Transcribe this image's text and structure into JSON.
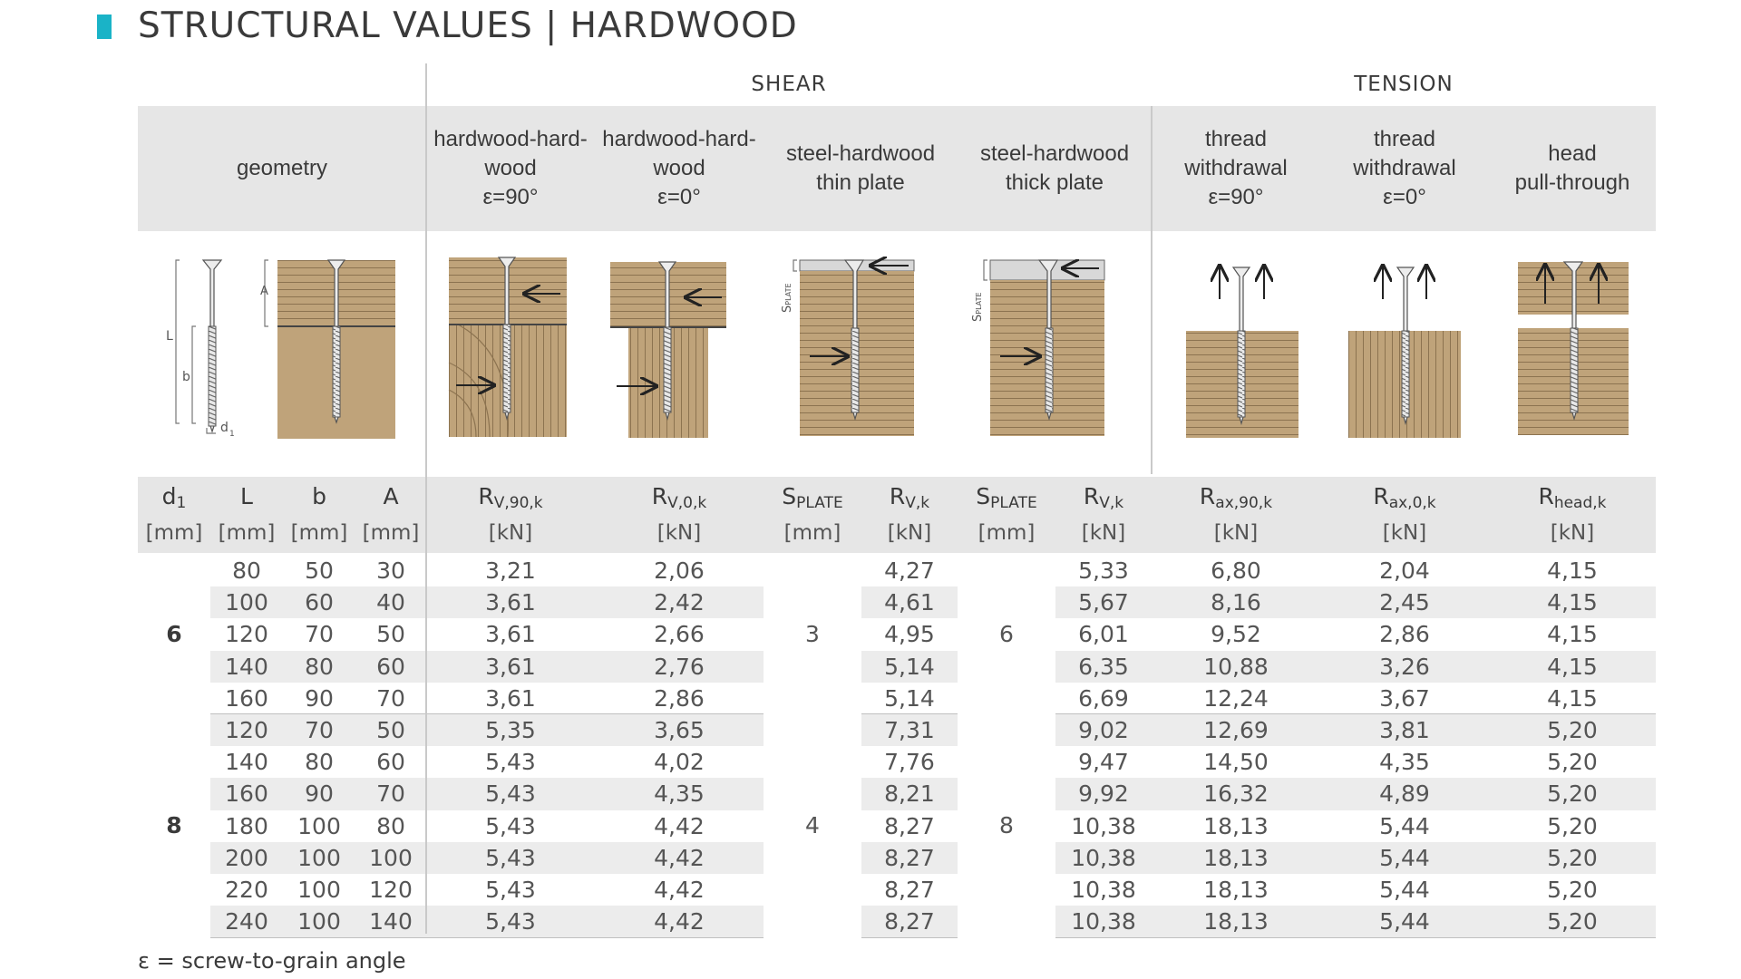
{
  "title": "STRUCTURAL VALUES | HARDWOOD",
  "colors": {
    "accent": "#1ab3c7",
    "header_bg": "#e6e6e6",
    "row_alt": "#ececec",
    "wood": "#bfa37a",
    "wood_grain": "#8c7350",
    "steel": "#d8d8d8"
  },
  "groups": {
    "shear": "SHEAR",
    "tension": "TENSION"
  },
  "headers": {
    "geometry": [
      "geometry"
    ],
    "hh90": [
      "hardwood-hard-",
      "wood",
      "ε=90°"
    ],
    "hh0": [
      "hardwood-hard-",
      "wood",
      "ε=0°"
    ],
    "steel_thin": [
      "steel-hardwood",
      "thin plate"
    ],
    "steel_thick": [
      "steel-hardwood",
      "thick plate"
    ],
    "tw90": [
      "thread",
      "withdrawal",
      "ε=90°"
    ],
    "tw0": [
      "thread",
      "withdrawal",
      "ε=0°"
    ],
    "head": [
      "head",
      "pull-through"
    ]
  },
  "diagram_labels": {
    "L": "L",
    "b": "b",
    "A": "A",
    "d1": "d",
    "d1_sub": "1",
    "splate": "S",
    "splate_sub": "PLATE"
  },
  "symbols": {
    "d1": {
      "base": "d",
      "sub": "1"
    },
    "L": {
      "base": "L",
      "sub": ""
    },
    "b": {
      "base": "b",
      "sub": ""
    },
    "A": {
      "base": "A",
      "sub": ""
    },
    "rv90": {
      "base": "R",
      "sub": "V,90,k"
    },
    "rv0": {
      "base": "R",
      "sub": "V,0,k"
    },
    "splate1": {
      "base": "S",
      "sub": "PLATE"
    },
    "rvk1": {
      "base": "R",
      "sub": "V,k"
    },
    "splate2": {
      "base": "S",
      "sub": "PLATE"
    },
    "rvk2": {
      "base": "R",
      "sub": "V,k"
    },
    "rax90": {
      "base": "R",
      "sub": "ax,90,k"
    },
    "rax0": {
      "base": "R",
      "sub": "ax,0,k"
    },
    "rhead": {
      "base": "R",
      "sub": "head,k"
    }
  },
  "units": {
    "mm": "[mm]",
    "kN": "[kN]"
  },
  "groups_rows": [
    {
      "d1": "6",
      "splate_thin": "3",
      "splate_thick": "6",
      "rows": [
        [
          "80",
          "50",
          "30",
          "3,21",
          "2,06",
          "4,27",
          "5,33",
          "6,80",
          "2,04",
          "4,15"
        ],
        [
          "100",
          "60",
          "40",
          "3,61",
          "2,42",
          "4,61",
          "5,67",
          "8,16",
          "2,45",
          "4,15"
        ],
        [
          "120",
          "70",
          "50",
          "3,61",
          "2,66",
          "4,95",
          "6,01",
          "9,52",
          "2,86",
          "4,15"
        ],
        [
          "140",
          "80",
          "60",
          "3,61",
          "2,76",
          "5,14",
          "6,35",
          "10,88",
          "3,26",
          "4,15"
        ],
        [
          "160",
          "90",
          "70",
          "3,61",
          "2,86",
          "5,14",
          "6,69",
          "12,24",
          "3,67",
          "4,15"
        ]
      ]
    },
    {
      "d1": "8",
      "splate_thin": "4",
      "splate_thick": "8",
      "rows": [
        [
          "120",
          "70",
          "50",
          "5,35",
          "3,65",
          "7,31",
          "9,02",
          "12,69",
          "3,81",
          "5,20"
        ],
        [
          "140",
          "80",
          "60",
          "5,43",
          "4,02",
          "7,76",
          "9,47",
          "14,50",
          "4,35",
          "5,20"
        ],
        [
          "160",
          "90",
          "70",
          "5,43",
          "4,35",
          "8,21",
          "9,92",
          "16,32",
          "4,89",
          "5,20"
        ],
        [
          "180",
          "100",
          "80",
          "5,43",
          "4,42",
          "8,27",
          "10,38",
          "18,13",
          "5,44",
          "5,20"
        ],
        [
          "200",
          "100",
          "100",
          "5,43",
          "4,42",
          "8,27",
          "10,38",
          "18,13",
          "5,44",
          "5,20"
        ],
        [
          "220",
          "100",
          "120",
          "5,43",
          "4,42",
          "8,27",
          "10,38",
          "18,13",
          "5,44",
          "5,20"
        ],
        [
          "240",
          "100",
          "140",
          "5,43",
          "4,42",
          "8,27",
          "10,38",
          "18,13",
          "5,44",
          "5,20"
        ]
      ]
    }
  ],
  "footnote": "ε = screw-to-grain angle"
}
